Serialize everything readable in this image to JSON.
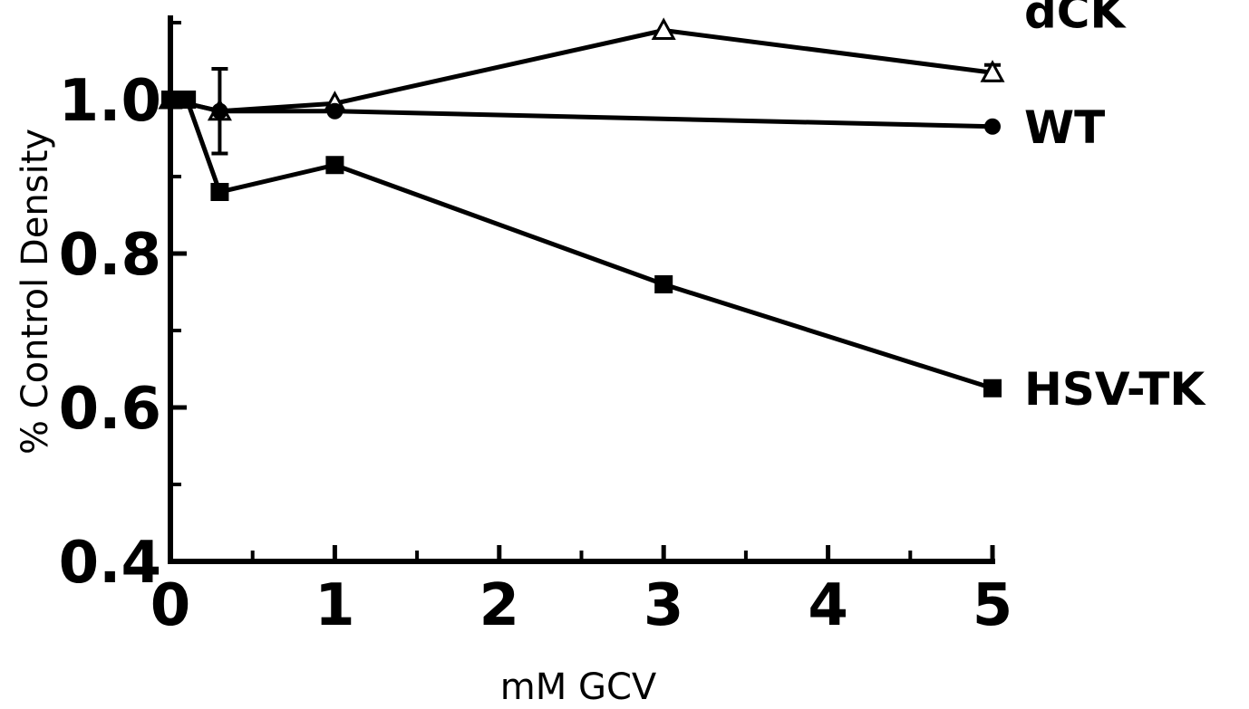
{
  "chart_data": {
    "type": "line",
    "title": "",
    "xlabel": "mM GCV",
    "ylabel": "% Control Density",
    "xlim": [
      0,
      5
    ],
    "ylim": [
      0.4,
      1.1
    ],
    "x_ticks": [
      0,
      1,
      2,
      3,
      4,
      5
    ],
    "x_tick_labels": [
      "0",
      "1",
      "2",
      "3",
      "4",
      "5"
    ],
    "y_ticks": [
      0.4,
      0.6,
      0.8,
      1.0
    ],
    "y_tick_labels": [
      "0.4",
      "0.6",
      "0.8",
      "1.0"
    ],
    "grid": false,
    "legend": "labels at right end of each series",
    "series": [
      {
        "name": "dCK",
        "marker": "open-triangle",
        "x": [
          0,
          0.3,
          1,
          3,
          5
        ],
        "y": [
          1.0,
          0.985,
          0.995,
          1.09,
          1.035
        ]
      },
      {
        "name": "WT",
        "marker": "filled-circle",
        "x": [
          0,
          0.3,
          1,
          5
        ],
        "y": [
          1.0,
          0.985,
          0.985,
          0.965
        ]
      },
      {
        "name": "HSV-TK",
        "marker": "filled-square",
        "x": [
          0,
          0.1,
          0.3,
          1,
          3,
          5
        ],
        "y": [
          1.0,
          1.0,
          0.88,
          0.915,
          0.76,
          0.625
        ]
      }
    ],
    "error_bars": [
      {
        "series": "dCK",
        "x": 0.3,
        "low": 0.93,
        "high": 1.04
      },
      {
        "series": "dCK",
        "x": 5,
        "low": 1.025,
        "high": 1.045
      }
    ]
  }
}
